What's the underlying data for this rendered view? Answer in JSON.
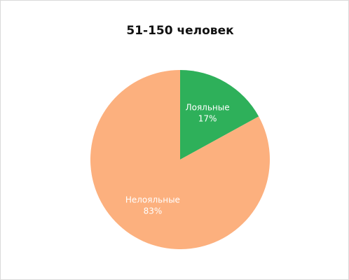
{
  "chart_data": {
    "type": "pie",
    "title": "51-150 человек",
    "categories": [
      "Лояльные",
      "Нелояльные"
    ],
    "values": [
      17,
      83
    ],
    "value_labels": [
      "17%",
      "83%"
    ],
    "colors": [
      "#2eb05a",
      "#fcb07e"
    ]
  }
}
